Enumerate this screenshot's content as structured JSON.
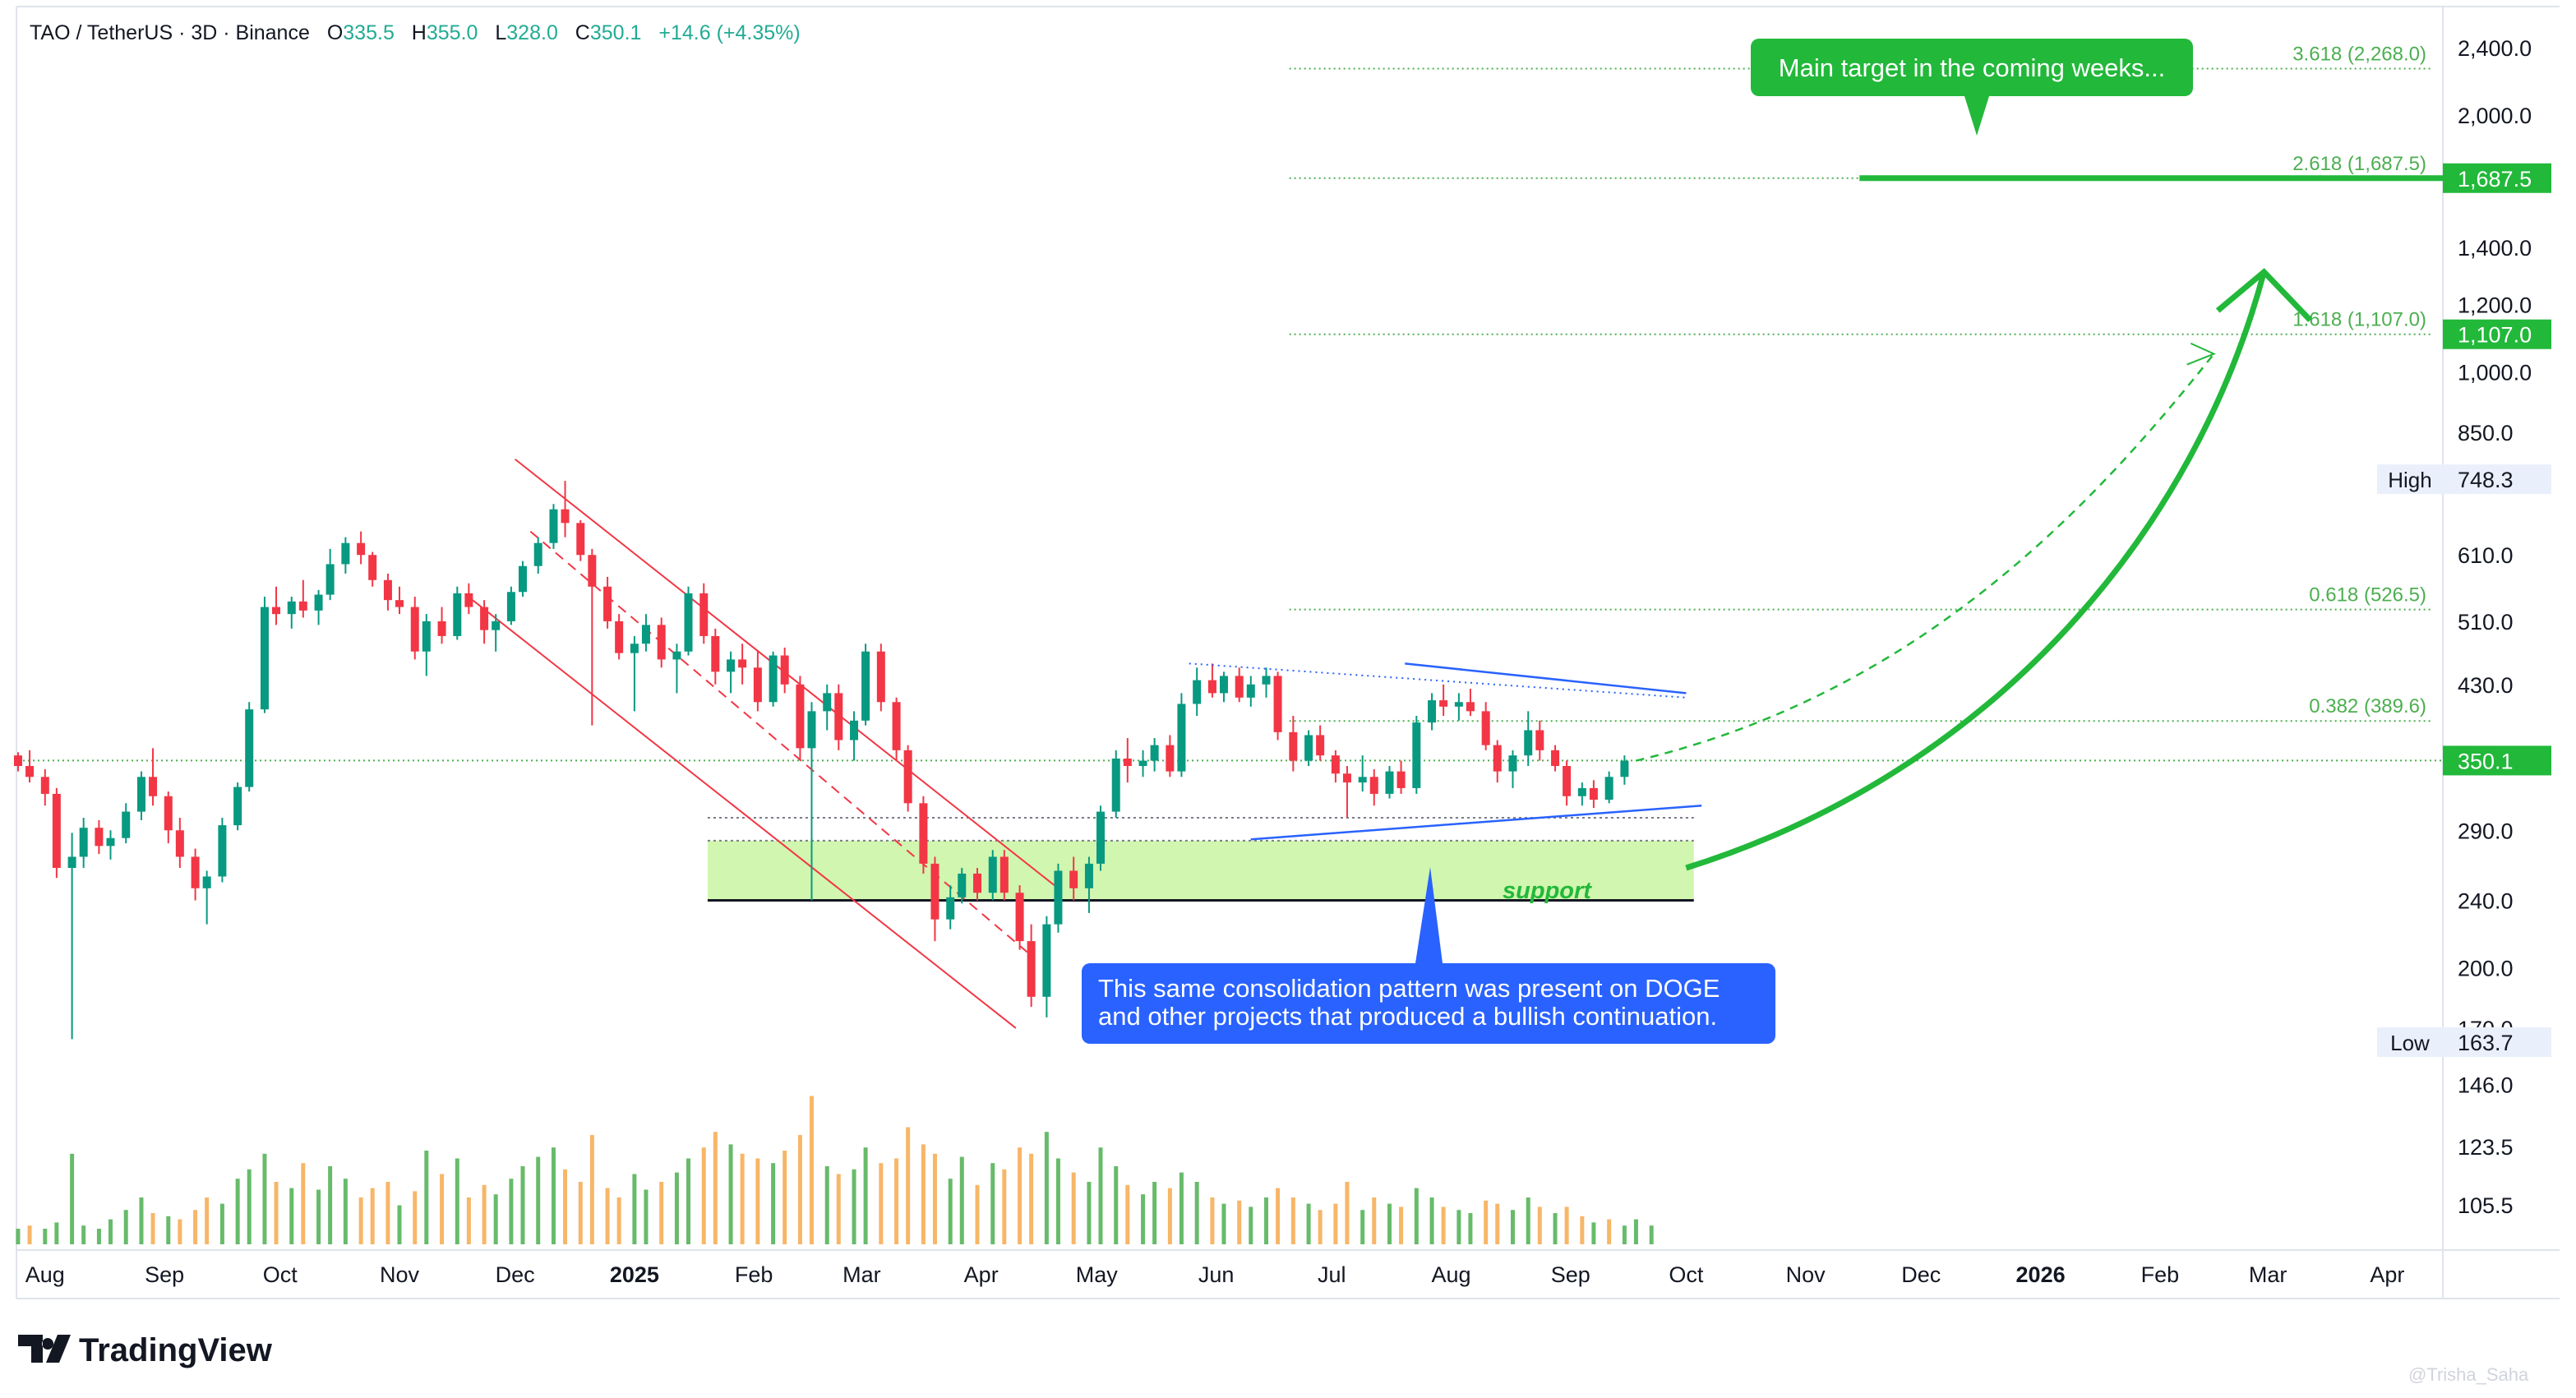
{
  "header": {
    "symbol": "TAO / TetherUS · 3D · Binance",
    "open_label": "O",
    "open": "335.5",
    "high_label": "H",
    "high": "355.0",
    "low_label": "L",
    "low": "328.0",
    "close_label": "C",
    "close": "350.1",
    "change": "+14.6 (+4.35%)"
  },
  "brand": {
    "name": "TradingView"
  },
  "watermark": "@Trisha_Saha",
  "annotations": {
    "target_callout": "Main target in the coming weeks...",
    "support_label": "support",
    "pattern_note_line1": "This same consolidation pattern was present on DOGE",
    "pattern_note_line2": "and other projects that produced a bullish continuation."
  },
  "colors": {
    "up": "#089981",
    "down": "#f23645",
    "accent_green": "#22b83a",
    "fib_green": "#4caf50",
    "note_blue": "#2962ff",
    "support_fill": "#ccf5a6",
    "channel_red": "#f23645",
    "vol_up": "#4caf50",
    "vol_down": "#f6a94d"
  },
  "chart_data": {
    "type": "candlestick",
    "title": "TAO / TetherUS · 3D · Binance",
    "y_scale": "log",
    "ylim": [
      100,
      2600
    ],
    "x_range": [
      "2024-07-25",
      "2026-04-15"
    ],
    "y_ticks": [
      2400.0,
      2000.0,
      1687.5,
      1400.0,
      1200.0,
      1107.0,
      1000.0,
      850.0,
      748.3,
      610.0,
      510.0,
      430.0,
      350.1,
      290.0,
      240.0,
      200.0,
      170.0,
      163.7,
      146.0,
      123.5,
      105.5
    ],
    "y_tick_labels": [
      "2,400.0",
      "2,000.0",
      "1,687.5",
      "1,400.0",
      "1,200.0",
      "1,107.0",
      "1,000.0",
      "850.0",
      "748.3",
      "610.0",
      "510.0",
      "430.0",
      "350.1",
      "290.0",
      "240.0",
      "200.0",
      "170.0",
      "163.7",
      "146.0",
      "123.5",
      "105.5"
    ],
    "x_ticks": [
      {
        "label": "Aug",
        "date": "2024-08-01",
        "bold": false
      },
      {
        "label": "Sep",
        "date": "2024-09-01",
        "bold": false
      },
      {
        "label": "Oct",
        "date": "2024-10-01",
        "bold": false
      },
      {
        "label": "Nov",
        "date": "2024-11-01",
        "bold": false
      },
      {
        "label": "Dec",
        "date": "2024-12-01",
        "bold": false
      },
      {
        "label": "2025",
        "date": "2025-01-01",
        "bold": true
      },
      {
        "label": "Feb",
        "date": "2025-02-01",
        "bold": false
      },
      {
        "label": "Mar",
        "date": "2025-03-01",
        "bold": false
      },
      {
        "label": "Apr",
        "date": "2025-04-01",
        "bold": false
      },
      {
        "label": "May",
        "date": "2025-05-01",
        "bold": false
      },
      {
        "label": "Jun",
        "date": "2025-06-01",
        "bold": false
      },
      {
        "label": "Jul",
        "date": "2025-07-01",
        "bold": false
      },
      {
        "label": "Aug",
        "date": "2025-08-01",
        "bold": false
      },
      {
        "label": "Sep",
        "date": "2025-09-01",
        "bold": false
      },
      {
        "label": "Oct",
        "date": "2025-10-01",
        "bold": false
      },
      {
        "label": "Nov",
        "date": "2025-11-01",
        "bold": false
      },
      {
        "label": "Dec",
        "date": "2025-12-01",
        "bold": false
      },
      {
        "label": "2026",
        "date": "2026-01-01",
        "bold": true
      },
      {
        "label": "Feb",
        "date": "2026-02-01",
        "bold": false
      },
      {
        "label": "Mar",
        "date": "2026-03-01",
        "bold": false
      },
      {
        "label": "Apr",
        "date": "2026-04-01",
        "bold": false
      }
    ],
    "price_markers": [
      {
        "label": "High",
        "value": 748.3,
        "style": "plain"
      },
      {
        "label": "Low",
        "value": 163.7,
        "style": "plain"
      },
      {
        "label": "",
        "value": 1687.5,
        "style": "green"
      },
      {
        "label": "",
        "value": 1107.0,
        "style": "green"
      },
      {
        "label": "",
        "value": 350.1,
        "style": "green"
      }
    ],
    "fib_levels": [
      {
        "label": "3.618 (2,268.0)",
        "value": 2268.0
      },
      {
        "label": "2.618 (1,687.5)",
        "value": 1687.5
      },
      {
        "label": "1.618 (1,107.0)",
        "value": 1107.0
      },
      {
        "label": "0.618 (526.5)",
        "value": 526.5
      },
      {
        "label": "0.382 (389.6)",
        "value": 389.6
      }
    ],
    "fib_start_date": "2025-06-20",
    "current_price": 350.1,
    "support_zone": {
      "from": "2025-01-20",
      "to": "2025-10-03",
      "low": 240.0,
      "high": 282.0
    },
    "candles_x": [
      "2024-07-25",
      "2025-09-15"
    ],
    "candles": [
      [
        355,
        358,
        340,
        345
      ],
      [
        345,
        360,
        330,
        335
      ],
      [
        335,
        342,
        310,
        320
      ],
      [
        320,
        325,
        255,
        262
      ],
      [
        262,
        288,
        165,
        270
      ],
      [
        270,
        300,
        262,
        292
      ],
      [
        292,
        298,
        272,
        278
      ],
      [
        278,
        290,
        268,
        284
      ],
      [
        284,
        312,
        280,
        305
      ],
      [
        305,
        340,
        298,
        335
      ],
      [
        335,
        362,
        310,
        318
      ],
      [
        318,
        322,
        280,
        290
      ],
      [
        290,
        300,
        262,
        270
      ],
      [
        270,
        276,
        240,
        248
      ],
      [
        248,
        260,
        225,
        256
      ],
      [
        256,
        300,
        252,
        294
      ],
      [
        294,
        330,
        290,
        326
      ],
      [
        326,
        410,
        322,
        402
      ],
      [
        402,
        545,
        398,
        530
      ],
      [
        530,
        560,
        505,
        520
      ],
      [
        520,
        545,
        500,
        538
      ],
      [
        538,
        570,
        515,
        525
      ],
      [
        525,
        555,
        505,
        548
      ],
      [
        548,
        620,
        540,
        595
      ],
      [
        595,
        640,
        580,
        630
      ],
      [
        630,
        650,
        595,
        610
      ],
      [
        610,
        615,
        560,
        570
      ],
      [
        570,
        580,
        525,
        540
      ],
      [
        540,
        560,
        520,
        530
      ],
      [
        530,
        545,
        460,
        470
      ],
      [
        470,
        520,
        440,
        510
      ],
      [
        510,
        530,
        480,
        490
      ],
      [
        490,
        560,
        485,
        550
      ],
      [
        550,
        565,
        520,
        530
      ],
      [
        530,
        540,
        480,
        498
      ],
      [
        498,
        520,
        470,
        510
      ],
      [
        510,
        560,
        505,
        552
      ],
      [
        552,
        600,
        545,
        592
      ],
      [
        592,
        640,
        580,
        630
      ],
      [
        630,
        700,
        620,
        690
      ],
      [
        690,
        745,
        640,
        665
      ],
      [
        665,
        670,
        600,
        610
      ],
      [
        610,
        620,
        385,
        560
      ],
      [
        560,
        575,
        500,
        510
      ],
      [
        510,
        520,
        460,
        468
      ],
      [
        468,
        490,
        400,
        480
      ],
      [
        480,
        520,
        470,
        505
      ],
      [
        505,
        515,
        450,
        460
      ],
      [
        460,
        480,
        420,
        470
      ],
      [
        470,
        560,
        465,
        550
      ],
      [
        550,
        565,
        480,
        490
      ],
      [
        490,
        500,
        430,
        445
      ],
      [
        445,
        470,
        420,
        460
      ],
      [
        460,
        480,
        430,
        450
      ],
      [
        450,
        470,
        400,
        410
      ],
      [
        410,
        470,
        405,
        465
      ],
      [
        465,
        475,
        420,
        430
      ],
      [
        430,
        440,
        350,
        362
      ],
      [
        362,
        410,
        240,
        400
      ],
      [
        400,
        430,
        380,
        420
      ],
      [
        420,
        430,
        360,
        370
      ],
      [
        370,
        400,
        350,
        390
      ],
      [
        390,
        480,
        385,
        470
      ],
      [
        470,
        480,
        400,
        410
      ],
      [
        410,
        415,
        350,
        360
      ],
      [
        360,
        365,
        305,
        312
      ],
      [
        312,
        318,
        258,
        265
      ],
      [
        265,
        270,
        215,
        228
      ],
      [
        228,
        250,
        222,
        242
      ],
      [
        242,
        262,
        238,
        258
      ],
      [
        258,
        262,
        240,
        245
      ],
      [
        245,
        275,
        240,
        270
      ],
      [
        270,
        275,
        240,
        245
      ],
      [
        245,
        250,
        210,
        215
      ],
      [
        215,
        225,
        180,
        185
      ],
      [
        185,
        230,
        175,
        225
      ],
      [
        225,
        265,
        220,
        260
      ],
      [
        260,
        270,
        240,
        248
      ],
      [
        248,
        270,
        232,
        265
      ],
      [
        265,
        310,
        260,
        305
      ],
      [
        305,
        360,
        300,
        352
      ],
      [
        352,
        372,
        330,
        345
      ],
      [
        345,
        360,
        335,
        350
      ],
      [
        350,
        372,
        340,
        365
      ],
      [
        365,
        375,
        335,
        340
      ],
      [
        340,
        420,
        335,
        408
      ],
      [
        408,
        450,
        395,
        435
      ],
      [
        435,
        455,
        415,
        420
      ],
      [
        420,
        445,
        410,
        440
      ],
      [
        440,
        450,
        410,
        415
      ],
      [
        415,
        440,
        405,
        430
      ],
      [
        430,
        450,
        415,
        440
      ],
      [
        440,
        445,
        370,
        378
      ],
      [
        378,
        395,
        340,
        350
      ],
      [
        350,
        380,
        345,
        375
      ],
      [
        375,
        385,
        350,
        355
      ],
      [
        355,
        360,
        330,
        338
      ],
      [
        338,
        345,
        300,
        330
      ],
      [
        330,
        355,
        322,
        335
      ],
      [
        335,
        342,
        310,
        320
      ],
      [
        320,
        345,
        316,
        340
      ],
      [
        340,
        350,
        320,
        325
      ],
      [
        325,
        395,
        320,
        388
      ],
      [
        388,
        420,
        380,
        412
      ],
      [
        412,
        430,
        395,
        405
      ],
      [
        405,
        420,
        390,
        410
      ],
      [
        410,
        425,
        395,
        400
      ],
      [
        400,
        410,
        360,
        365
      ],
      [
        365,
        370,
        330,
        340
      ],
      [
        340,
        360,
        325,
        355
      ],
      [
        355,
        400,
        345,
        380
      ],
      [
        380,
        390,
        350,
        360
      ],
      [
        360,
        365,
        340,
        345
      ],
      [
        345,
        350,
        310,
        318
      ],
      [
        318,
        330,
        310,
        325
      ],
      [
        325,
        332,
        308,
        315
      ],
      [
        315,
        340,
        312,
        335
      ],
      [
        335,
        355,
        328,
        350
      ]
    ],
    "volume": [
      [
        0.1,
        1
      ],
      [
        0.12,
        0
      ],
      [
        0.1,
        1
      ],
      [
        0.14,
        1
      ],
      [
        0.58,
        1
      ],
      [
        0.12,
        1
      ],
      [
        0.1,
        1
      ],
      [
        0.16,
        1
      ],
      [
        0.22,
        1
      ],
      [
        0.3,
        1
      ],
      [
        0.2,
        0
      ],
      [
        0.18,
        1
      ],
      [
        0.16,
        0
      ],
      [
        0.22,
        0
      ],
      [
        0.3,
        0
      ],
      [
        0.26,
        1
      ],
      [
        0.42,
        1
      ],
      [
        0.48,
        1
      ],
      [
        0.58,
        1
      ],
      [
        0.4,
        0
      ],
      [
        0.36,
        1
      ],
      [
        0.52,
        0
      ],
      [
        0.35,
        1
      ],
      [
        0.5,
        1
      ],
      [
        0.42,
        1
      ],
      [
        0.3,
        0
      ],
      [
        0.36,
        0
      ],
      [
        0.4,
        0
      ],
      [
        0.25,
        1
      ],
      [
        0.34,
        0
      ],
      [
        0.6,
        1
      ],
      [
        0.45,
        0
      ],
      [
        0.55,
        1
      ],
      [
        0.3,
        0
      ],
      [
        0.38,
        0
      ],
      [
        0.32,
        1
      ],
      [
        0.42,
        1
      ],
      [
        0.5,
        1
      ],
      [
        0.56,
        1
      ],
      [
        0.62,
        1
      ],
      [
        0.48,
        0
      ],
      [
        0.4,
        0
      ],
      [
        0.7,
        0
      ],
      [
        0.36,
        0
      ],
      [
        0.3,
        0
      ],
      [
        0.45,
        1
      ],
      [
        0.35,
        1
      ],
      [
        0.4,
        0
      ],
      [
        0.46,
        1
      ],
      [
        0.55,
        1
      ],
      [
        0.62,
        0
      ],
      [
        0.72,
        0
      ],
      [
        0.64,
        1
      ],
      [
        0.58,
        0
      ],
      [
        0.55,
        0
      ],
      [
        0.52,
        1
      ],
      [
        0.6,
        0
      ],
      [
        0.7,
        0
      ],
      [
        0.95,
        0
      ],
      [
        0.5,
        1
      ],
      [
        0.45,
        0
      ],
      [
        0.48,
        1
      ],
      [
        0.62,
        1
      ],
      [
        0.52,
        0
      ],
      [
        0.55,
        0
      ],
      [
        0.75,
        0
      ],
      [
        0.64,
        0
      ],
      [
        0.58,
        0
      ],
      [
        0.42,
        1
      ],
      [
        0.56,
        1
      ],
      [
        0.38,
        0
      ],
      [
        0.52,
        1
      ],
      [
        0.48,
        0
      ],
      [
        0.62,
        0
      ],
      [
        0.58,
        0
      ],
      [
        0.72,
        1
      ],
      [
        0.55,
        1
      ],
      [
        0.46,
        0
      ],
      [
        0.4,
        1
      ],
      [
        0.62,
        1
      ],
      [
        0.5,
        1
      ],
      [
        0.38,
        0
      ],
      [
        0.32,
        1
      ],
      [
        0.4,
        1
      ],
      [
        0.36,
        0
      ],
      [
        0.46,
        1
      ],
      [
        0.4,
        1
      ],
      [
        0.3,
        0
      ],
      [
        0.26,
        1
      ],
      [
        0.28,
        0
      ],
      [
        0.24,
        1
      ],
      [
        0.3,
        1
      ],
      [
        0.36,
        0
      ],
      [
        0.3,
        0
      ],
      [
        0.26,
        1
      ],
      [
        0.22,
        0
      ],
      [
        0.26,
        0
      ],
      [
        0.4,
        0
      ],
      [
        0.22,
        1
      ],
      [
        0.3,
        0
      ],
      [
        0.26,
        1
      ],
      [
        0.24,
        0
      ],
      [
        0.36,
        1
      ],
      [
        0.3,
        1
      ],
      [
        0.24,
        0
      ],
      [
        0.22,
        1
      ],
      [
        0.2,
        1
      ],
      [
        0.28,
        0
      ],
      [
        0.26,
        0
      ],
      [
        0.22,
        1
      ],
      [
        0.3,
        1
      ],
      [
        0.24,
        0
      ],
      [
        0.2,
        1
      ],
      [
        0.24,
        0
      ],
      [
        0.18,
        0
      ],
      [
        0.14,
        1
      ],
      [
        0.16,
        0
      ],
      [
        0.12,
        1
      ],
      [
        0.16,
        1
      ],
      [
        0.12,
        1
      ]
    ],
    "grid": false,
    "legend": "none"
  }
}
